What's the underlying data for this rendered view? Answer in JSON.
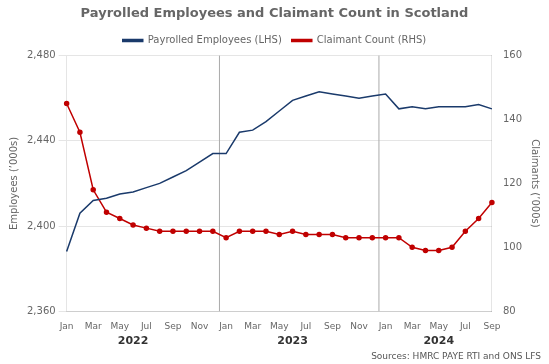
{
  "chart_data": {
    "type": "line",
    "title": "Payrolled Employees and Claimant Count in Scotland",
    "ylabel": "Employees (’000s)",
    "y2label": "Claimants (’000s)",
    "source": "Sources: HMRC PAYE RTI and ONS LFS",
    "categories": [
      "Jan",
      null,
      "Mar",
      null,
      "May",
      null,
      "Jul",
      null,
      "Sep",
      null,
      "Nov",
      null,
      "Jan",
      null,
      "Mar",
      null,
      "May",
      null,
      "Jul",
      null,
      "Sep",
      null,
      "Nov",
      null,
      "Jan",
      null,
      "Mar",
      null,
      "May",
      null,
      "Jul",
      null,
      "Sep"
    ],
    "series": [
      {
        "name": "Payrolled Employees (LHS)",
        "color": "#1a3a6b",
        "axis": "y",
        "marker": "none",
        "values": [
          2388,
          2406,
          2412,
          2413,
          2415,
          2416,
          2418,
          2420,
          2423,
          2426,
          2430,
          2434,
          2434,
          2444,
          2445,
          2449,
          2454,
          2459,
          2461,
          2463,
          2462,
          2461,
          2460,
          2461,
          2462,
          2455,
          2456,
          2455,
          2456,
          2456,
          2456,
          2457,
          2455
        ]
      },
      {
        "name": "Claimant Count (RHS)",
        "color": "#c00000",
        "axis": "y2",
        "marker": "circle",
        "values": [
          145,
          136,
          118,
          111,
          109,
          107,
          106,
          105,
          105,
          105,
          105,
          105,
          103,
          105,
          105,
          105,
          104,
          105,
          104,
          104,
          104,
          103,
          103,
          103,
          103,
          103,
          100,
          99,
          99,
          100,
          105,
          109,
          114
        ]
      }
    ],
    "ylim": [
      2360,
      2480
    ],
    "yticks": [
      {
        "value": 2360,
        "label": "2,360"
      },
      {
        "value": 2400,
        "label": "2,400"
      },
      {
        "value": 2440,
        "label": "2,440"
      },
      {
        "value": 2480,
        "label": "2,480"
      }
    ],
    "y2lim": [
      80,
      160
    ],
    "y2ticks": [
      80,
      100,
      120,
      140,
      160
    ],
    "annotations": [
      {
        "text": "2022",
        "x": 5
      },
      {
        "text": "2023",
        "x": 17
      },
      {
        "text": "2024",
        "x": 28
      }
    ],
    "vertical_lines": [
      11.5,
      23.5
    ],
    "grid": "y",
    "legend": "top"
  }
}
